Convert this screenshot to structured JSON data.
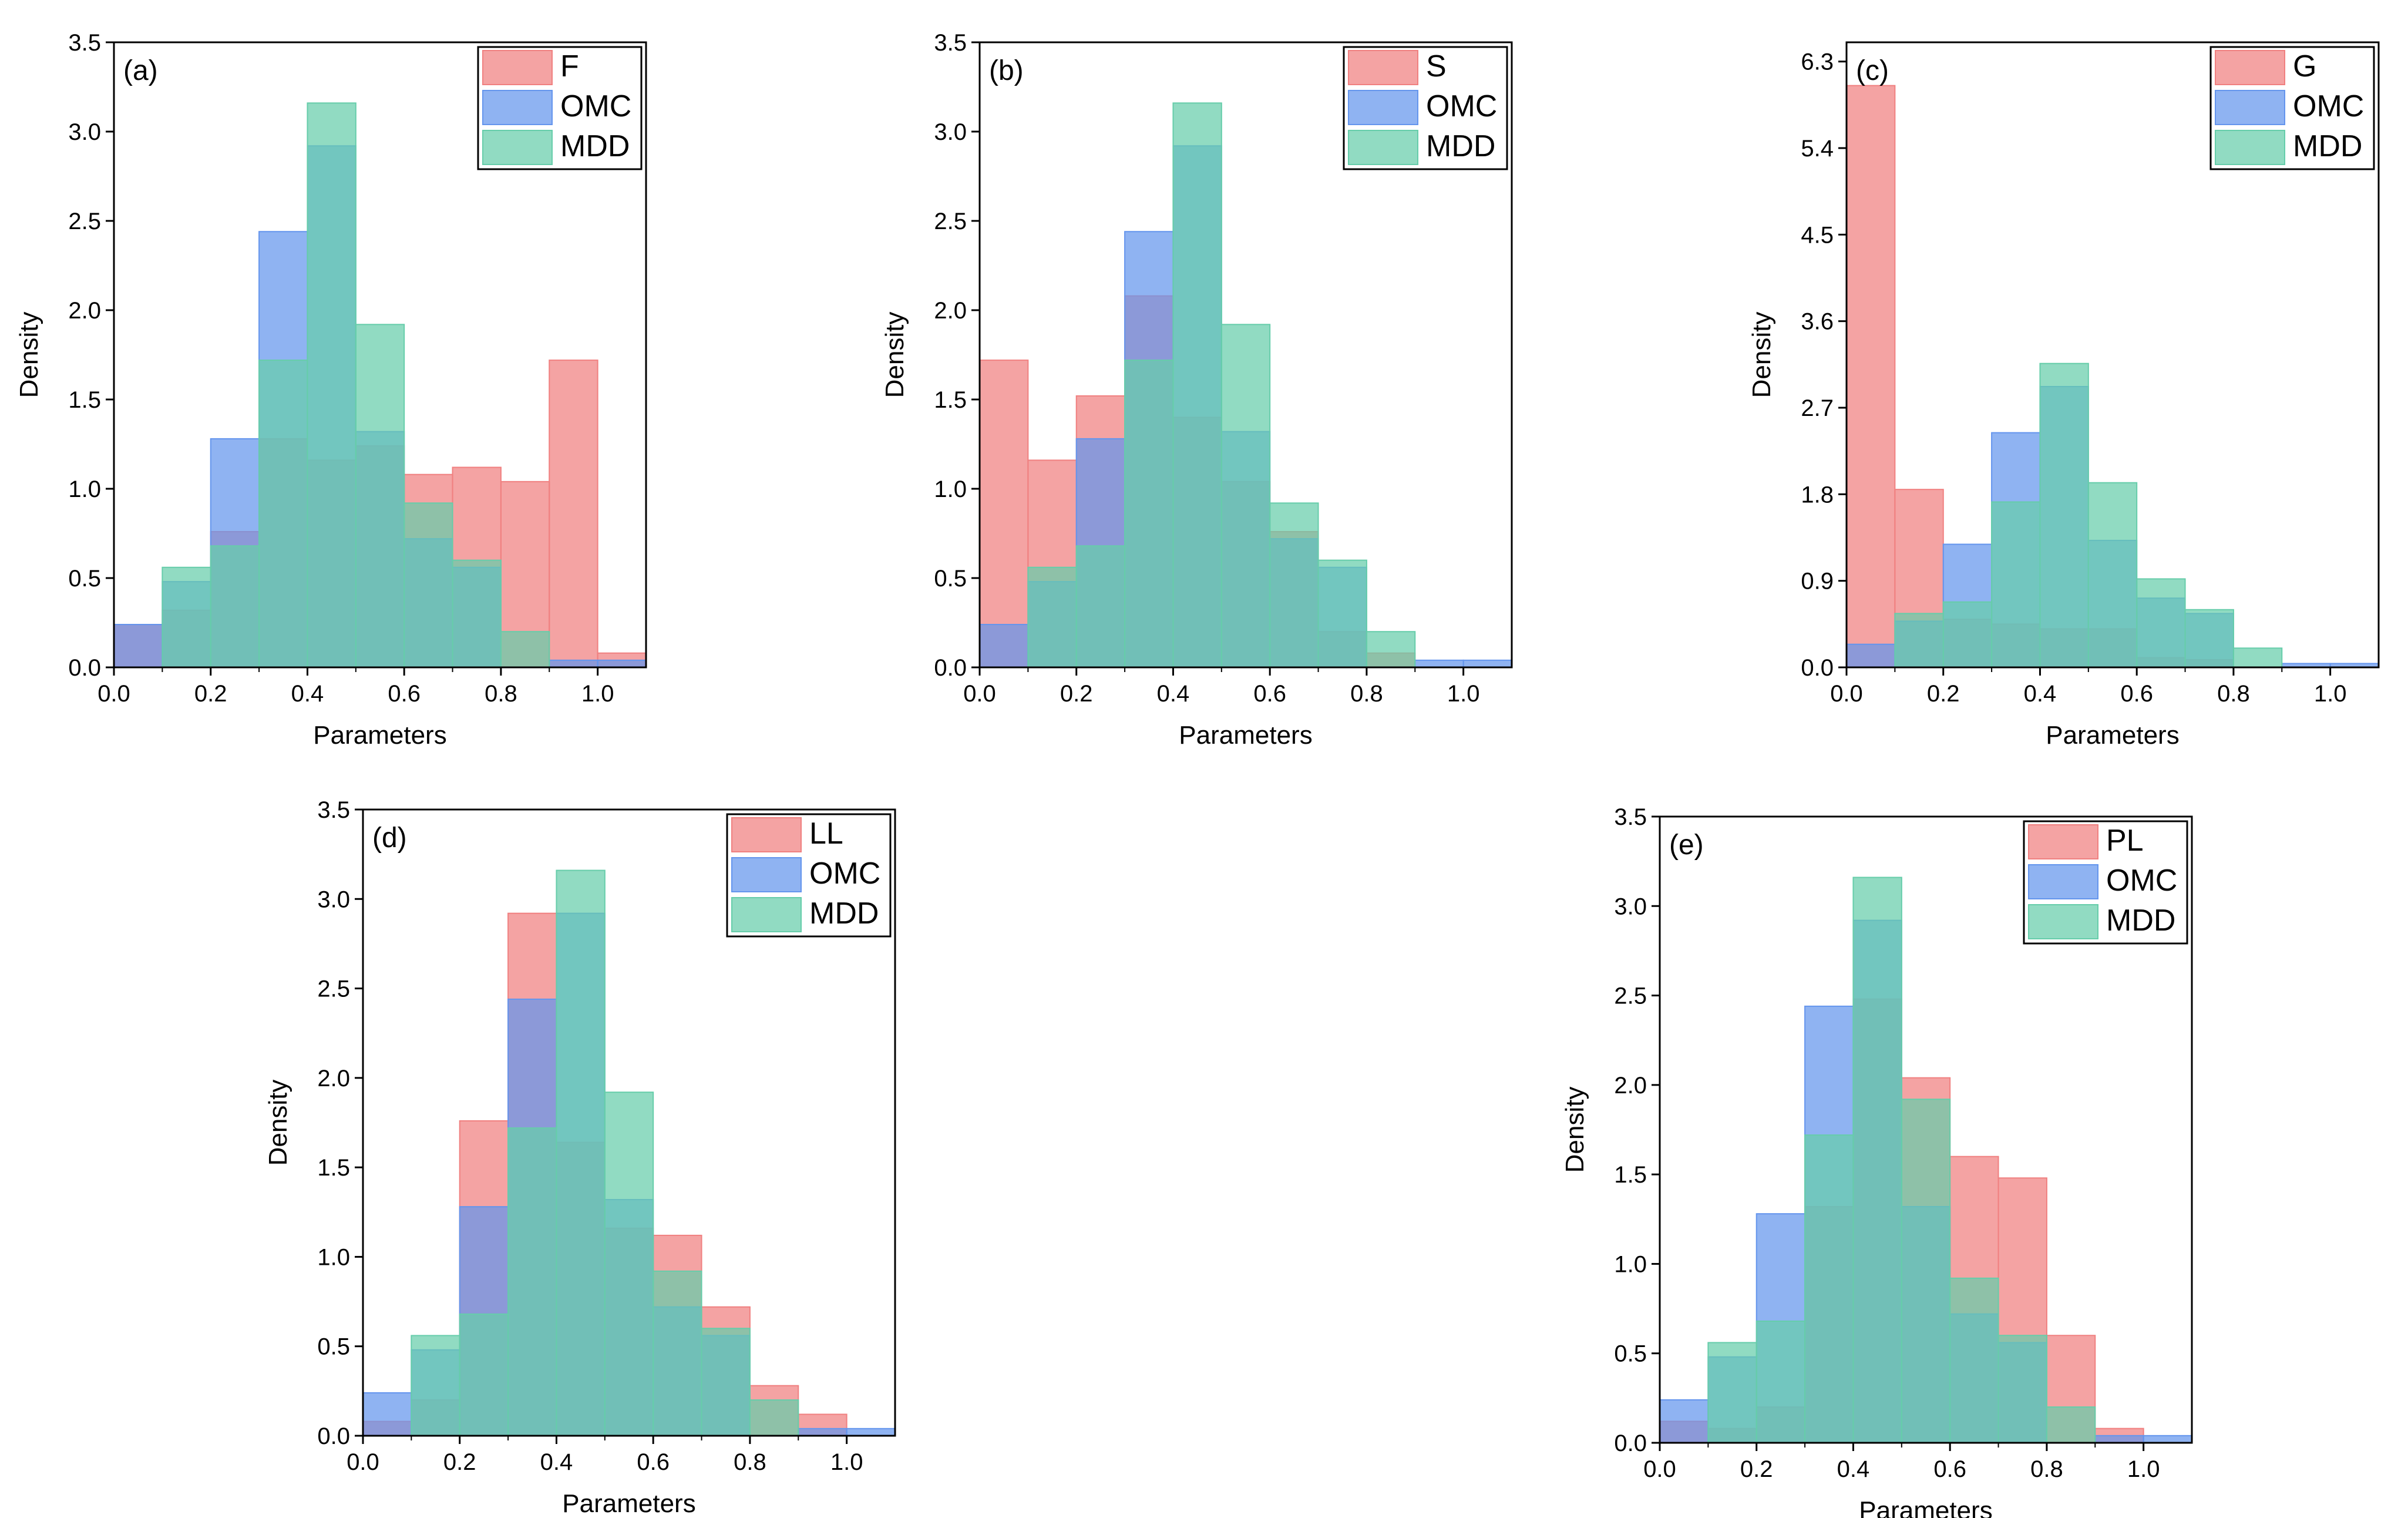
{
  "chart_data": [
    {
      "type": "histogram",
      "panel_label": "(a)",
      "xlabel": "Parameters",
      "ylabel": "Density",
      "xlim": [
        0,
        1.1
      ],
      "ylim": [
        0,
        3.5
      ],
      "x_ticks": [
        "0.0",
        "0.2",
        "0.4",
        "0.6",
        "0.8",
        "1.0"
      ],
      "y_ticks": [
        "0.0",
        "0.5",
        "1.0",
        "1.5",
        "2.0",
        "2.5",
        "3.0",
        "3.5"
      ],
      "bin_edges": [
        0,
        0.1,
        0.2,
        0.3,
        0.4,
        0.5,
        0.6,
        0.7,
        0.8,
        0.9,
        1.0,
        1.1
      ],
      "legend_position": "top-right",
      "series": [
        {
          "name": "F",
          "color": "#f08080",
          "values": [
            0.24,
            0.32,
            0.76,
            1.28,
            1.16,
            1.24,
            1.08,
            1.12,
            1.04,
            1.72,
            0.08
          ]
        },
        {
          "name": "OMC",
          "color": "#6495ed",
          "values": [
            0.24,
            0.48,
            1.28,
            2.44,
            2.92,
            1.32,
            0.72,
            0.56,
            0.0,
            0.04,
            0.04
          ]
        },
        {
          "name": "MDD",
          "color": "#66cdaa",
          "values": [
            0.0,
            0.56,
            0.68,
            1.72,
            3.16,
            1.92,
            0.92,
            0.6,
            0.2,
            0.0,
            0.0
          ]
        }
      ]
    },
    {
      "type": "histogram",
      "panel_label": "(b)",
      "xlabel": "Parameters",
      "ylabel": "Density",
      "xlim": [
        0,
        1.1
      ],
      "ylim": [
        0,
        3.5
      ],
      "x_ticks": [
        "0.0",
        "0.2",
        "0.4",
        "0.6",
        "0.8",
        "1.0"
      ],
      "y_ticks": [
        "0.0",
        "0.5",
        "1.0",
        "1.5",
        "2.0",
        "2.5",
        "3.0",
        "3.5"
      ],
      "bin_edges": [
        0,
        0.1,
        0.2,
        0.3,
        0.4,
        0.5,
        0.6,
        0.7,
        0.8,
        0.9,
        1.0,
        1.1
      ],
      "legend_position": "top-right",
      "series": [
        {
          "name": "S",
          "color": "#f08080",
          "values": [
            1.72,
            1.16,
            1.52,
            2.08,
            1.4,
            1.04,
            0.76,
            0.2,
            0.08,
            0.0,
            0.0
          ]
        },
        {
          "name": "OMC",
          "color": "#6495ed",
          "values": [
            0.24,
            0.48,
            1.28,
            2.44,
            2.92,
            1.32,
            0.72,
            0.56,
            0.0,
            0.04,
            0.04
          ]
        },
        {
          "name": "MDD",
          "color": "#66cdaa",
          "values": [
            0.0,
            0.56,
            0.68,
            1.72,
            3.16,
            1.92,
            0.92,
            0.6,
            0.2,
            0.0,
            0.0
          ]
        }
      ]
    },
    {
      "type": "histogram",
      "panel_label": "(c)",
      "xlabel": "Parameters",
      "ylabel": "Density",
      "xlim": [
        0,
        1.1
      ],
      "ylim": [
        0,
        6.5
      ],
      "x_ticks": [
        "0.0",
        "0.2",
        "0.4",
        "0.6",
        "0.8",
        "1.0"
      ],
      "y_ticks": [
        "0.0",
        "0.9",
        "1.8",
        "2.7",
        "3.6",
        "4.5",
        "5.4",
        "6.3"
      ],
      "bin_edges": [
        0,
        0.1,
        0.2,
        0.3,
        0.4,
        0.5,
        0.6,
        0.7,
        0.8,
        0.9,
        1.0,
        1.1
      ],
      "legend_position": "top-right",
      "series": [
        {
          "name": "G",
          "color": "#f08080",
          "values": [
            6.05,
            1.85,
            0.5,
            0.45,
            0.4,
            0.4,
            0.1,
            0.08,
            0.0,
            0.0,
            0.0
          ]
        },
        {
          "name": "OMC",
          "color": "#6495ed",
          "values": [
            0.24,
            0.48,
            1.28,
            2.44,
            2.92,
            1.32,
            0.72,
            0.56,
            0.0,
            0.04,
            0.04
          ]
        },
        {
          "name": "MDD",
          "color": "#66cdaa",
          "values": [
            0.0,
            0.56,
            0.68,
            1.72,
            3.16,
            1.92,
            0.92,
            0.6,
            0.2,
            0.0,
            0.0
          ]
        }
      ]
    },
    {
      "type": "histogram",
      "panel_label": "(d)",
      "xlabel": "Parameters",
      "ylabel": "Density",
      "xlim": [
        0,
        1.1
      ],
      "ylim": [
        0,
        3.5
      ],
      "x_ticks": [
        "0.0",
        "0.2",
        "0.4",
        "0.6",
        "0.8",
        "1.0"
      ],
      "y_ticks": [
        "0.0",
        "0.5",
        "1.0",
        "1.5",
        "2.0",
        "2.5",
        "3.0",
        "3.5"
      ],
      "bin_edges": [
        0,
        0.1,
        0.2,
        0.3,
        0.4,
        0.5,
        0.6,
        0.7,
        0.8,
        0.9,
        1.0,
        1.1
      ],
      "legend_position": "top-right",
      "series": [
        {
          "name": "LL",
          "color": "#f08080",
          "values": [
            0.08,
            0.2,
            1.76,
            2.92,
            1.64,
            1.16,
            1.12,
            0.72,
            0.28,
            0.12,
            0.0
          ]
        },
        {
          "name": "OMC",
          "color": "#6495ed",
          "values": [
            0.24,
            0.48,
            1.28,
            2.44,
            2.92,
            1.32,
            0.72,
            0.56,
            0.0,
            0.04,
            0.04
          ]
        },
        {
          "name": "MDD",
          "color": "#66cdaa",
          "values": [
            0.0,
            0.56,
            0.68,
            1.72,
            3.16,
            1.92,
            0.92,
            0.6,
            0.2,
            0.0,
            0.0
          ]
        }
      ]
    },
    {
      "type": "histogram",
      "panel_label": "(e)",
      "xlabel": "Parameters",
      "ylabel": "Density",
      "xlim": [
        0,
        1.1
      ],
      "ylim": [
        0,
        3.5
      ],
      "x_ticks": [
        "0.0",
        "0.2",
        "0.4",
        "0.6",
        "0.8",
        "1.0"
      ],
      "y_ticks": [
        "0.0",
        "0.5",
        "1.0",
        "1.5",
        "2.0",
        "2.5",
        "3.0",
        "3.5"
      ],
      "bin_edges": [
        0,
        0.1,
        0.2,
        0.3,
        0.4,
        0.5,
        0.6,
        0.7,
        0.8,
        0.9,
        1.0,
        1.1
      ],
      "legend_position": "top-right",
      "series": [
        {
          "name": "PL",
          "color": "#f08080",
          "values": [
            0.12,
            0.08,
            0.2,
            1.32,
            2.48,
            2.04,
            1.6,
            1.48,
            0.6,
            0.08,
            0.0
          ]
        },
        {
          "name": "OMC",
          "color": "#6495ed",
          "values": [
            0.24,
            0.48,
            1.28,
            2.44,
            2.92,
            1.32,
            0.72,
            0.56,
            0.0,
            0.04,
            0.04
          ]
        },
        {
          "name": "MDD",
          "color": "#66cdaa",
          "values": [
            0.0,
            0.56,
            0.68,
            1.72,
            3.16,
            1.92,
            0.92,
            0.6,
            0.2,
            0.0,
            0.0
          ]
        }
      ]
    }
  ]
}
